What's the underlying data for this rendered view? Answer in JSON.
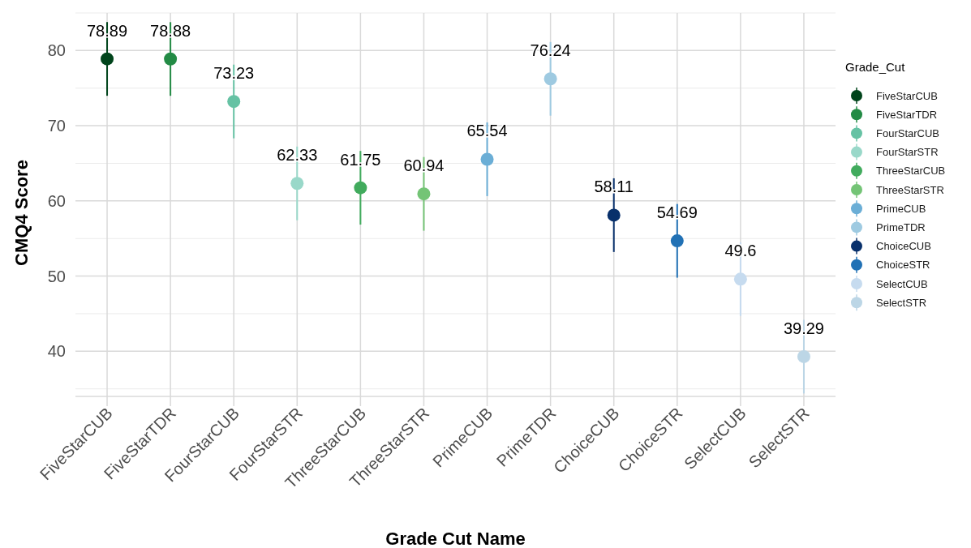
{
  "chart_data": {
    "type": "scatter",
    "xlabel": "Grade Cut Name",
    "ylabel": "CMQ4 Score",
    "legend_title": "Grade_Cut",
    "categories": [
      "FiveStarCUB",
      "FiveStarTDR",
      "FourStarCUB",
      "FourStarSTR",
      "ThreeStarCUB",
      "ThreeStarSTR",
      "PrimeCUB",
      "PrimeTDR",
      "ChoiceCUB",
      "ChoiceSTR",
      "SelectCUB",
      "SelectSTR"
    ],
    "series": [
      {
        "name": "FiveStarCUB",
        "color": "#00441b",
        "values": [
          78.89,
          null,
          null,
          null,
          null,
          null,
          null,
          null,
          null,
          null,
          null,
          null
        ],
        "errors": [
          4.9,
          null,
          null,
          null,
          null,
          null,
          null,
          null,
          null,
          null,
          null,
          null
        ]
      },
      {
        "name": "FiveStarTDR",
        "color": "#238b45",
        "values": [
          null,
          78.88,
          null,
          null,
          null,
          null,
          null,
          null,
          null,
          null,
          null,
          null
        ],
        "errors": [
          null,
          4.9,
          null,
          null,
          null,
          null,
          null,
          null,
          null,
          null,
          null,
          null
        ]
      },
      {
        "name": "FourStarCUB",
        "color": "#66c2a4",
        "values": [
          null,
          null,
          73.23,
          null,
          null,
          null,
          null,
          null,
          null,
          null,
          null,
          null
        ],
        "errors": [
          null,
          null,
          4.9,
          null,
          null,
          null,
          null,
          null,
          null,
          null,
          null,
          null
        ]
      },
      {
        "name": "FourStarSTR",
        "color": "#99d8c9",
        "values": [
          null,
          null,
          null,
          62.33,
          null,
          null,
          null,
          null,
          null,
          null,
          null,
          null
        ],
        "errors": [
          null,
          null,
          null,
          4.9,
          null,
          null,
          null,
          null,
          null,
          null,
          null,
          null
        ]
      },
      {
        "name": "ThreeStarCUB",
        "color": "#41ab5d",
        "values": [
          null,
          null,
          null,
          null,
          61.75,
          null,
          null,
          null,
          null,
          null,
          null,
          null
        ],
        "errors": [
          null,
          null,
          null,
          null,
          4.9,
          null,
          null,
          null,
          null,
          null,
          null,
          null
        ]
      },
      {
        "name": "ThreeStarSTR",
        "color": "#74c476",
        "values": [
          null,
          null,
          null,
          null,
          null,
          60.94,
          null,
          null,
          null,
          null,
          null,
          null
        ],
        "errors": [
          null,
          null,
          null,
          null,
          null,
          4.9,
          null,
          null,
          null,
          null,
          null,
          null
        ]
      },
      {
        "name": "PrimeCUB",
        "color": "#6baed6",
        "values": [
          null,
          null,
          null,
          null,
          null,
          null,
          65.54,
          null,
          null,
          null,
          null,
          null
        ],
        "errors": [
          null,
          null,
          null,
          null,
          null,
          null,
          4.9,
          null,
          null,
          null,
          null,
          null
        ]
      },
      {
        "name": "PrimeTDR",
        "color": "#9ecae1",
        "values": [
          null,
          null,
          null,
          null,
          null,
          null,
          null,
          76.24,
          null,
          null,
          null,
          null
        ],
        "errors": [
          null,
          null,
          null,
          null,
          null,
          null,
          null,
          4.9,
          null,
          null,
          null,
          null
        ]
      },
      {
        "name": "ChoiceCUB",
        "color": "#08306b",
        "values": [
          null,
          null,
          null,
          null,
          null,
          null,
          null,
          null,
          58.11,
          null,
          null,
          null
        ],
        "errors": [
          null,
          null,
          null,
          null,
          null,
          null,
          null,
          null,
          4.9,
          null,
          null,
          null
        ]
      },
      {
        "name": "ChoiceSTR",
        "color": "#2171b5",
        "values": [
          null,
          null,
          null,
          null,
          null,
          null,
          null,
          null,
          null,
          54.69,
          null,
          null
        ],
        "errors": [
          null,
          null,
          null,
          null,
          null,
          null,
          null,
          null,
          null,
          4.9,
          null,
          null
        ]
      },
      {
        "name": "SelectCUB",
        "color": "#c6dbef",
        "values": [
          null,
          null,
          null,
          null,
          null,
          null,
          null,
          null,
          null,
          null,
          49.6,
          null
        ],
        "errors": [
          null,
          null,
          null,
          null,
          null,
          null,
          null,
          null,
          null,
          null,
          4.9,
          null
        ]
      },
      {
        "name": "SelectSTR",
        "color": "#bcd6e6",
        "values": [
          null,
          null,
          null,
          null,
          null,
          null,
          null,
          null,
          null,
          null,
          null,
          39.29
        ],
        "errors": [
          null,
          null,
          null,
          null,
          null,
          null,
          null,
          null,
          null,
          null,
          null,
          4.9
        ]
      }
    ],
    "ylim": [
      34,
      85
    ],
    "yticks": [
      {
        "value": 35,
        "label": null
      },
      40,
      {
        "value": 45,
        "label": null
      },
      50,
      {
        "value": 55,
        "label": null
      },
      60,
      {
        "value": 65,
        "label": null
      },
      70,
      {
        "value": 75,
        "label": null
      },
      80,
      {
        "value": 85,
        "label": null
      }
    ],
    "grid": true,
    "legend": "right",
    "marker": "circle",
    "data_labels": true
  }
}
